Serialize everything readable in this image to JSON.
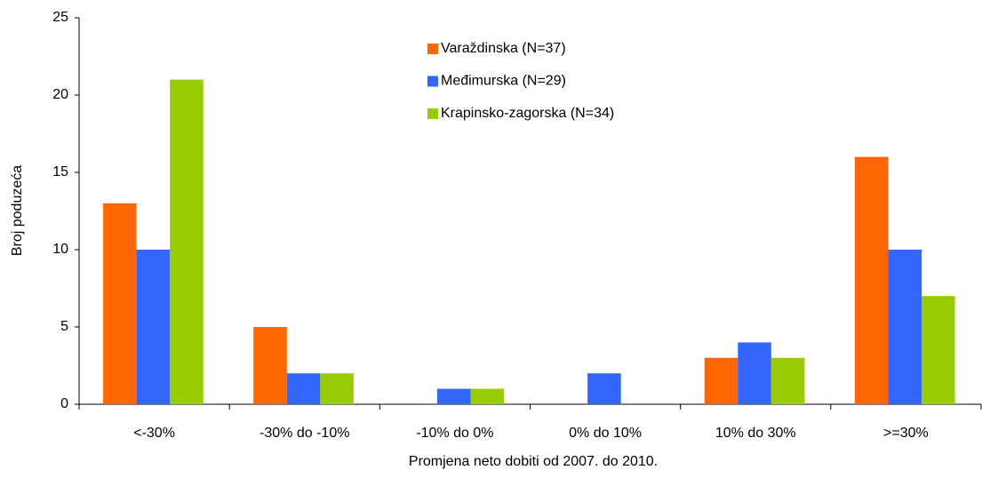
{
  "chart_data": {
    "type": "bar",
    "x_label": "Promjena neto dobiti od 2007. do 2010.",
    "y_label": "Broj poduzeća",
    "categories": [
      "<-30%",
      "-30% do -10%",
      "-10% do 0%",
      "0% do 10%",
      "10% do 30%",
      ">=30%"
    ],
    "series": [
      {
        "name": "Varaždinska (N=37)",
        "color": "#ff6600",
        "values": [
          13,
          5,
          0,
          0,
          3,
          16
        ]
      },
      {
        "name": "Međimurska (N=29)",
        "color": "#3366ff",
        "values": [
          10,
          2,
          1,
          2,
          4,
          10
        ]
      },
      {
        "name": "Krapinsko-zagorska (N=34)",
        "color": "#99cc00",
        "values": [
          21,
          2,
          1,
          0,
          3,
          7
        ]
      }
    ],
    "ylim": [
      0,
      25
    ],
    "yticks": [
      0,
      5,
      10,
      15,
      20,
      25
    ],
    "grid": false,
    "legend": "top"
  }
}
